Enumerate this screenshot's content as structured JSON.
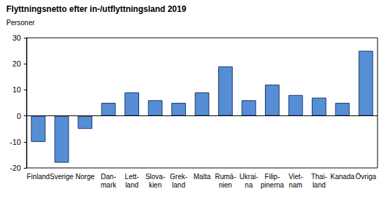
{
  "chart_data": {
    "type": "bar",
    "title": "Flyttningsnetto efter in-/utflyttningsland 2019",
    "subtitle": "Personer",
    "categories": [
      "Finland",
      "Sverige",
      "Norge",
      "Dan-\nmark",
      "Lett-\nland",
      "Slova-\nkien",
      "Grek-\nland",
      "Malta",
      "Rumä-\nnien",
      "Ukrai-\nna",
      "Filip-\npinerna",
      "Viet-\nnam",
      "Thai-\nland",
      "Kanada",
      "Övriga"
    ],
    "values": [
      -10,
      -18,
      -5,
      5,
      9,
      6,
      5,
      9,
      19,
      6,
      12,
      8,
      7,
      5,
      25
    ],
    "color": "#558ed5",
    "ylim": [
      -20,
      30
    ],
    "yticks": [
      -20,
      -10,
      0,
      10,
      20,
      30
    ],
    "grid": false
  }
}
